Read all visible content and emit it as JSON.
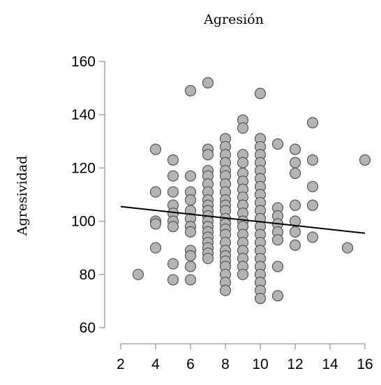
{
  "chart_data": {
    "type": "scatter",
    "title": "Agresión",
    "xlabel": "",
    "ylabel": "Agresividad",
    "xlim": [
      2,
      16
    ],
    "ylim": [
      60,
      160
    ],
    "xticks": [
      2,
      4,
      6,
      8,
      10,
      12,
      14,
      16
    ],
    "yticks": [
      60,
      80,
      100,
      120,
      140,
      160
    ],
    "grid": false,
    "colors": {
      "point_fill": "#b4b4b4",
      "point_stroke": "#555555",
      "line": "#000000"
    },
    "regression_line": {
      "x": [
        2,
        16
      ],
      "y": [
        105.5,
        95.5
      ]
    },
    "points": [
      {
        "x": 3,
        "y": 80
      },
      {
        "x": 4,
        "y": 127
      },
      {
        "x": 4,
        "y": 111
      },
      {
        "x": 4,
        "y": 100
      },
      {
        "x": 4,
        "y": 99
      },
      {
        "x": 4,
        "y": 90
      },
      {
        "x": 5,
        "y": 123
      },
      {
        "x": 5,
        "y": 117
      },
      {
        "x": 5,
        "y": 111
      },
      {
        "x": 5,
        "y": 106
      },
      {
        "x": 5,
        "y": 103
      },
      {
        "x": 5,
        "y": 100
      },
      {
        "x": 5,
        "y": 98
      },
      {
        "x": 5,
        "y": 84
      },
      {
        "x": 5,
        "y": 78
      },
      {
        "x": 6,
        "y": 149
      },
      {
        "x": 6,
        "y": 117
      },
      {
        "x": 6,
        "y": 111
      },
      {
        "x": 6,
        "y": 108
      },
      {
        "x": 6,
        "y": 104
      },
      {
        "x": 6,
        "y": 101
      },
      {
        "x": 6,
        "y": 98
      },
      {
        "x": 6,
        "y": 96
      },
      {
        "x": 6,
        "y": 89
      },
      {
        "x": 6,
        "y": 87
      },
      {
        "x": 6,
        "y": 83
      },
      {
        "x": 6,
        "y": 78
      },
      {
        "x": 7,
        "y": 152
      },
      {
        "x": 7,
        "y": 127
      },
      {
        "x": 7,
        "y": 125
      },
      {
        "x": 7,
        "y": 119
      },
      {
        "x": 7,
        "y": 117
      },
      {
        "x": 7,
        "y": 114
      },
      {
        "x": 7,
        "y": 111
      },
      {
        "x": 7,
        "y": 108
      },
      {
        "x": 7,
        "y": 106
      },
      {
        "x": 7,
        "y": 104
      },
      {
        "x": 7,
        "y": 102
      },
      {
        "x": 7,
        "y": 100
      },
      {
        "x": 7,
        "y": 98
      },
      {
        "x": 7,
        "y": 96
      },
      {
        "x": 7,
        "y": 94
      },
      {
        "x": 7,
        "y": 92
      },
      {
        "x": 7,
        "y": 90
      },
      {
        "x": 7,
        "y": 88
      },
      {
        "x": 7,
        "y": 86
      },
      {
        "x": 8,
        "y": 131
      },
      {
        "x": 8,
        "y": 128
      },
      {
        "x": 8,
        "y": 125
      },
      {
        "x": 8,
        "y": 122
      },
      {
        "x": 8,
        "y": 119
      },
      {
        "x": 8,
        "y": 117
      },
      {
        "x": 8,
        "y": 114
      },
      {
        "x": 8,
        "y": 111
      },
      {
        "x": 8,
        "y": 108
      },
      {
        "x": 8,
        "y": 106
      },
      {
        "x": 8,
        "y": 104
      },
      {
        "x": 8,
        "y": 101
      },
      {
        "x": 8,
        "y": 99
      },
      {
        "x": 8,
        "y": 97
      },
      {
        "x": 8,
        "y": 95
      },
      {
        "x": 8,
        "y": 92
      },
      {
        "x": 8,
        "y": 89
      },
      {
        "x": 8,
        "y": 87
      },
      {
        "x": 8,
        "y": 85
      },
      {
        "x": 8,
        "y": 83
      },
      {
        "x": 8,
        "y": 80
      },
      {
        "x": 8,
        "y": 77
      },
      {
        "x": 8,
        "y": 74
      },
      {
        "x": 9,
        "y": 138
      },
      {
        "x": 9,
        "y": 135
      },
      {
        "x": 9,
        "y": 125
      },
      {
        "x": 9,
        "y": 122
      },
      {
        "x": 9,
        "y": 118
      },
      {
        "x": 9,
        "y": 115
      },
      {
        "x": 9,
        "y": 112
      },
      {
        "x": 9,
        "y": 109
      },
      {
        "x": 9,
        "y": 106
      },
      {
        "x": 9,
        "y": 103
      },
      {
        "x": 9,
        "y": 100
      },
      {
        "x": 9,
        "y": 98
      },
      {
        "x": 9,
        "y": 95
      },
      {
        "x": 9,
        "y": 92
      },
      {
        "x": 9,
        "y": 89
      },
      {
        "x": 9,
        "y": 86
      },
      {
        "x": 9,
        "y": 83
      },
      {
        "x": 9,
        "y": 80
      },
      {
        "x": 10,
        "y": 148
      },
      {
        "x": 10,
        "y": 131
      },
      {
        "x": 10,
        "y": 128
      },
      {
        "x": 10,
        "y": 125
      },
      {
        "x": 10,
        "y": 122
      },
      {
        "x": 10,
        "y": 119
      },
      {
        "x": 10,
        "y": 116
      },
      {
        "x": 10,
        "y": 113
      },
      {
        "x": 10,
        "y": 110
      },
      {
        "x": 10,
        "y": 107
      },
      {
        "x": 10,
        "y": 104
      },
      {
        "x": 10,
        "y": 101
      },
      {
        "x": 10,
        "y": 98
      },
      {
        "x": 10,
        "y": 95
      },
      {
        "x": 10,
        "y": 92
      },
      {
        "x": 10,
        "y": 89
      },
      {
        "x": 10,
        "y": 86
      },
      {
        "x": 10,
        "y": 83
      },
      {
        "x": 10,
        "y": 80
      },
      {
        "x": 10,
        "y": 77
      },
      {
        "x": 10,
        "y": 74
      },
      {
        "x": 10,
        "y": 71
      },
      {
        "x": 11,
        "y": 129
      },
      {
        "x": 11,
        "y": 105
      },
      {
        "x": 11,
        "y": 102
      },
      {
        "x": 11,
        "y": 99
      },
      {
        "x": 11,
        "y": 96
      },
      {
        "x": 11,
        "y": 93
      },
      {
        "x": 11,
        "y": 83
      },
      {
        "x": 11,
        "y": 72
      },
      {
        "x": 12,
        "y": 127
      },
      {
        "x": 12,
        "y": 122
      },
      {
        "x": 12,
        "y": 118
      },
      {
        "x": 12,
        "y": 106
      },
      {
        "x": 12,
        "y": 100
      },
      {
        "x": 12,
        "y": 96
      },
      {
        "x": 12,
        "y": 91
      },
      {
        "x": 13,
        "y": 137
      },
      {
        "x": 13,
        "y": 123
      },
      {
        "x": 13,
        "y": 113
      },
      {
        "x": 13,
        "y": 106
      },
      {
        "x": 13,
        "y": 94
      },
      {
        "x": 15,
        "y": 90
      },
      {
        "x": 16,
        "y": 123
      }
    ]
  }
}
